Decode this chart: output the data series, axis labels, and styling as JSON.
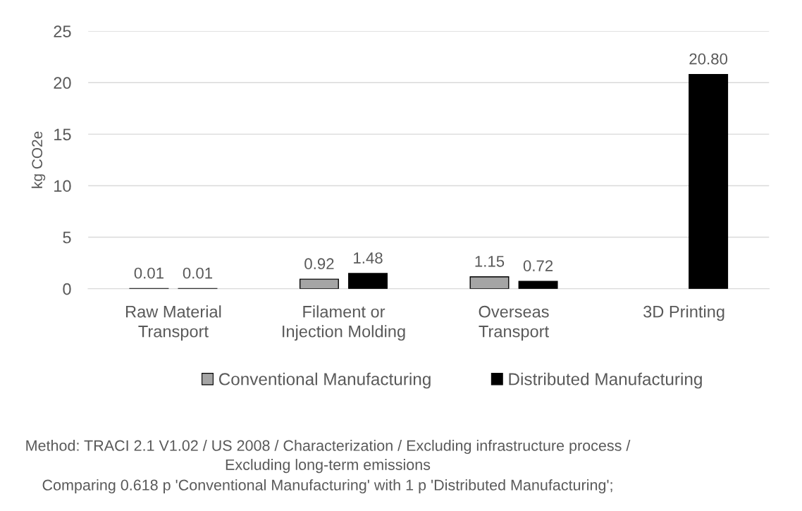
{
  "chart_data": {
    "type": "bar",
    "ylabel": "kg CO2e",
    "categories": [
      "Raw Material Transport",
      "Filament or Injection Molding",
      "Overseas Transport",
      "3D Printing"
    ],
    "series": [
      {
        "name": "Conventional Manufacturing",
        "color": "#a5a5a5",
        "values": [
          0.01,
          0.92,
          1.15,
          null
        ],
        "value_labels": [
          "0.01",
          "0.92",
          "1.15",
          null
        ]
      },
      {
        "name": "Distributed Manufacturing",
        "color": "#000000",
        "values": [
          0.01,
          1.48,
          0.72,
          20.8
        ],
        "value_labels": [
          "0.01",
          "1.48",
          "0.72",
          "20.80"
        ]
      }
    ],
    "ylim": [
      0,
      25
    ],
    "yticks": [
      0,
      5,
      10,
      15,
      20,
      25
    ],
    "grid": "y",
    "legend": "bottom",
    "annotations": [
      "Method: TRACI 2.1 V1.02 / US 2008 / Characterization / Excluding infrastructure process / Excluding long-term emissions",
      "Comparing 0.618 p 'Conventional Manufacturing' with 1 p 'Distributed Manufacturing';"
    ]
  }
}
